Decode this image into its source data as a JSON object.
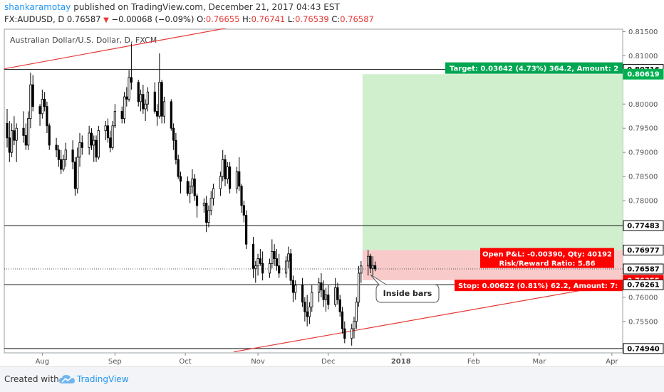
{
  "header": {
    "user": "shankaramotay",
    "published": " published on TradingView.com, December 21, 2017 04:43 EST",
    "symbol": "FX:AUDUSD, D",
    "last": "0.76587",
    "change": "−0.00068 (−0.09%)",
    "o_label": "O:",
    "o": "0.76655",
    "h_label": "H:",
    "h": "0.76741",
    "l_label": "L:",
    "l": "0.76539",
    "c_label": "C:",
    "c": "0.76587"
  },
  "footer": {
    "created": "Created with",
    "brand": "TradingView"
  },
  "chart_data": {
    "type": "candlestick",
    "title": "Australian Dollar/U.S. Dollar, D, FXCM",
    "ylim": [
      0.7485,
      0.8155
    ],
    "y_ticks": [
      "0.81500",
      "0.81000",
      "0.80000",
      "0.79500",
      "0.79000",
      "0.78500",
      "0.78000",
      "0.77500",
      "0.76000",
      "0.75500",
      "0.75000"
    ],
    "x_ticks": [
      "Aug",
      "Sep",
      "Oct",
      "Nov",
      "Dec",
      "2018",
      "Feb",
      "Mar",
      "Apr"
    ],
    "horizontal_levels": [
      0.80716,
      0.77483,
      0.76261,
      0.7494
    ],
    "price_labels": [
      {
        "text": "0.80716",
        "value": 0.80716,
        "color": "#ffffff",
        "text_color": "#000000"
      },
      {
        "text": "0.80619",
        "value": 0.80619,
        "color": "#00b050",
        "text_color": "#ffffff"
      },
      {
        "text": "0.77483",
        "value": 0.77483,
        "color": "#ffffff",
        "text_color": "#000000"
      },
      {
        "text": "0.76977",
        "value": 0.76977,
        "color": "#ffffff",
        "text_color": "#000000"
      },
      {
        "text": "0.76587",
        "value": 0.76587,
        "color": "#ffffff",
        "text_color": "#000000"
      },
      {
        "text": "0.76355",
        "value": 0.76355,
        "color": "#ff0000",
        "text_color": "#ffffff"
      },
      {
        "text": "0.76261",
        "value": 0.76261,
        "color": "#ffffff",
        "text_color": "#000000"
      },
      {
        "text": "0.74940",
        "value": 0.7494,
        "color": "#ffffff",
        "text_color": "#000000"
      }
    ],
    "position": {
      "entry": 0.76977,
      "target": 0.80619,
      "stop": 0.76355,
      "target_text": "Target: 0.03642 (4.73%) 364.2, Amount: 2",
      "pnl_text": "Open P&L: -0.00390, Qty: 40192",
      "rr_text": "Risk/Reward Ratio: 5.86",
      "stop_text": "Stop: 0.00622 (0.81%) 62.2, Amount: 7:"
    },
    "annotation": "Inside bars",
    "candles": [
      {
        "date": "2017-07-17",
        "o": 0.796,
        "h": 0.799,
        "l": 0.791,
        "c": 0.793
      },
      {
        "date": "2017-07-18",
        "o": 0.793,
        "h": 0.7965,
        "l": 0.788,
        "c": 0.79
      },
      {
        "date": "2017-07-19",
        "o": 0.79,
        "h": 0.796,
        "l": 0.789,
        "c": 0.7945
      },
      {
        "date": "2017-07-20",
        "o": 0.7945,
        "h": 0.7975,
        "l": 0.7915,
        "c": 0.7925
      },
      {
        "date": "2017-07-21",
        "o": 0.7925,
        "h": 0.796,
        "l": 0.788,
        "c": 0.795
      },
      {
        "date": "2017-07-24",
        "o": 0.795,
        "h": 0.7985,
        "l": 0.792,
        "c": 0.7935
      },
      {
        "date": "2017-07-25",
        "o": 0.7935,
        "h": 0.796,
        "l": 0.7905,
        "c": 0.7915
      },
      {
        "date": "2017-07-26",
        "o": 0.7915,
        "h": 0.7985,
        "l": 0.7905,
        "c": 0.797
      },
      {
        "date": "2017-07-27",
        "o": 0.797,
        "h": 0.8065,
        "l": 0.795,
        "c": 0.804
      },
      {
        "date": "2017-07-28",
        "o": 0.804,
        "h": 0.806,
        "l": 0.7985,
        "c": 0.7995
      },
      {
        "date": "2017-07-31",
        "o": 0.7995,
        "h": 0.8,
        "l": 0.7955,
        "c": 0.798
      },
      {
        "date": "2017-08-01",
        "o": 0.798,
        "h": 0.803,
        "l": 0.797,
        "c": 0.801
      },
      {
        "date": "2017-08-02",
        "o": 0.801,
        "h": 0.8025,
        "l": 0.7985,
        "c": 0.7995
      },
      {
        "date": "2017-08-03",
        "o": 0.7995,
        "h": 0.8005,
        "l": 0.794,
        "c": 0.7955
      },
      {
        "date": "2017-08-04",
        "o": 0.7955,
        "h": 0.796,
        "l": 0.7905,
        "c": 0.7915
      },
      {
        "date": "2017-08-07",
        "o": 0.7915,
        "h": 0.793,
        "l": 0.789,
        "c": 0.7905
      },
      {
        "date": "2017-08-08",
        "o": 0.7905,
        "h": 0.7915,
        "l": 0.787,
        "c": 0.7885
      },
      {
        "date": "2017-08-09",
        "o": 0.7885,
        "h": 0.7905,
        "l": 0.7855,
        "c": 0.7865
      },
      {
        "date": "2017-08-10",
        "o": 0.7865,
        "h": 0.7895,
        "l": 0.786,
        "c": 0.7885
      },
      {
        "date": "2017-08-11",
        "o": 0.7885,
        "h": 0.792,
        "l": 0.787,
        "c": 0.7905
      },
      {
        "date": "2017-08-14",
        "o": 0.7905,
        "h": 0.7925,
        "l": 0.7865,
        "c": 0.788
      },
      {
        "date": "2017-08-15",
        "o": 0.788,
        "h": 0.789,
        "l": 0.781,
        "c": 0.7825
      },
      {
        "date": "2017-08-16",
        "o": 0.7825,
        "h": 0.791,
        "l": 0.7815,
        "c": 0.789
      },
      {
        "date": "2017-08-17",
        "o": 0.789,
        "h": 0.794,
        "l": 0.787,
        "c": 0.792
      },
      {
        "date": "2017-08-18",
        "o": 0.792,
        "h": 0.7935,
        "l": 0.7895,
        "c": 0.791
      },
      {
        "date": "2017-08-21",
        "o": 0.791,
        "h": 0.7955,
        "l": 0.7895,
        "c": 0.794
      },
      {
        "date": "2017-08-22",
        "o": 0.794,
        "h": 0.795,
        "l": 0.7905,
        "c": 0.7915
      },
      {
        "date": "2017-08-23",
        "o": 0.7915,
        "h": 0.7935,
        "l": 0.788,
        "c": 0.7925
      },
      {
        "date": "2017-08-24",
        "o": 0.7925,
        "h": 0.7935,
        "l": 0.788,
        "c": 0.789
      },
      {
        "date": "2017-08-25",
        "o": 0.789,
        "h": 0.7955,
        "l": 0.7885,
        "c": 0.7945
      },
      {
        "date": "2017-08-28",
        "o": 0.7945,
        "h": 0.7965,
        "l": 0.7925,
        "c": 0.7955
      },
      {
        "date": "2017-08-29",
        "o": 0.7955,
        "h": 0.797,
        "l": 0.792,
        "c": 0.793
      },
      {
        "date": "2017-08-30",
        "o": 0.793,
        "h": 0.7945,
        "l": 0.79,
        "c": 0.791
      },
      {
        "date": "2017-08-31",
        "o": 0.791,
        "h": 0.7965,
        "l": 0.7905,
        "c": 0.7955
      },
      {
        "date": "2017-09-01",
        "o": 0.7955,
        "h": 0.8,
        "l": 0.795,
        "c": 0.7985
      },
      {
        "date": "2017-09-04",
        "o": 0.7985,
        "h": 0.7995,
        "l": 0.796,
        "c": 0.797
      },
      {
        "date": "2017-09-05",
        "o": 0.797,
        "h": 0.8025,
        "l": 0.796,
        "c": 0.8015
      },
      {
        "date": "2017-09-06",
        "o": 0.8015,
        "h": 0.8035,
        "l": 0.7995,
        "c": 0.801
      },
      {
        "date": "2017-09-07",
        "o": 0.801,
        "h": 0.807,
        "l": 0.8005,
        "c": 0.8055
      },
      {
        "date": "2017-09-08",
        "o": 0.8055,
        "h": 0.8125,
        "l": 0.803,
        "c": 0.8045
      },
      {
        "date": "2017-09-11",
        "o": 0.8045,
        "h": 0.805,
        "l": 0.7995,
        "c": 0.8005
      },
      {
        "date": "2017-09-12",
        "o": 0.8005,
        "h": 0.803,
        "l": 0.7985,
        "c": 0.802
      },
      {
        "date": "2017-09-13",
        "o": 0.802,
        "h": 0.804,
        "l": 0.798,
        "c": 0.799
      },
      {
        "date": "2017-09-14",
        "o": 0.799,
        "h": 0.801,
        "l": 0.7965,
        "c": 0.8
      },
      {
        "date": "2017-09-15",
        "o": 0.8,
        "h": 0.8035,
        "l": 0.7985,
        "c": 0.8025
      },
      {
        "date": "2017-09-18",
        "o": 0.8025,
        "h": 0.8045,
        "l": 0.798,
        "c": 0.7985
      },
      {
        "date": "2017-09-19",
        "o": 0.7985,
        "h": 0.8,
        "l": 0.7955,
        "c": 0.7975
      },
      {
        "date": "2017-09-20",
        "o": 0.7975,
        "h": 0.8105,
        "l": 0.797,
        "c": 0.8045
      },
      {
        "date": "2017-09-21",
        "o": 0.8045,
        "h": 0.805,
        "l": 0.796,
        "c": 0.7975
      },
      {
        "date": "2017-09-22",
        "o": 0.7975,
        "h": 0.8015,
        "l": 0.796,
        "c": 0.8005
      },
      {
        "date": "2017-09-25",
        "o": 0.8005,
        "h": 0.801,
        "l": 0.7945,
        "c": 0.795
      },
      {
        "date": "2017-09-26",
        "o": 0.795,
        "h": 0.796,
        "l": 0.7905,
        "c": 0.7925
      },
      {
        "date": "2017-09-27",
        "o": 0.7925,
        "h": 0.794,
        "l": 0.7875,
        "c": 0.7885
      },
      {
        "date": "2017-09-28",
        "o": 0.7885,
        "h": 0.7895,
        "l": 0.7845,
        "c": 0.785
      },
      {
        "date": "2017-09-29",
        "o": 0.785,
        "h": 0.786,
        "l": 0.7815,
        "c": 0.784
      },
      {
        "date": "2017-10-02",
        "o": 0.784,
        "h": 0.785,
        "l": 0.781,
        "c": 0.7815
      },
      {
        "date": "2017-10-03",
        "o": 0.7815,
        "h": 0.784,
        "l": 0.7795,
        "c": 0.783
      },
      {
        "date": "2017-10-04",
        "o": 0.783,
        "h": 0.7865,
        "l": 0.7815,
        "c": 0.7845
      },
      {
        "date": "2017-10-05",
        "o": 0.7845,
        "h": 0.7855,
        "l": 0.78,
        "c": 0.781
      },
      {
        "date": "2017-10-06",
        "o": 0.781,
        "h": 0.7815,
        "l": 0.7765,
        "c": 0.779
      },
      {
        "date": "2017-10-09",
        "o": 0.779,
        "h": 0.7805,
        "l": 0.7775,
        "c": 0.7795
      },
      {
        "date": "2017-10-10",
        "o": 0.7795,
        "h": 0.781,
        "l": 0.7735,
        "c": 0.7755
      },
      {
        "date": "2017-10-11",
        "o": 0.7755,
        "h": 0.779,
        "l": 0.7745,
        "c": 0.778
      },
      {
        "date": "2017-10-12",
        "o": 0.778,
        "h": 0.782,
        "l": 0.777,
        "c": 0.7805
      },
      {
        "date": "2017-10-13",
        "o": 0.7805,
        "h": 0.7835,
        "l": 0.779,
        "c": 0.7825
      },
      {
        "date": "2017-10-16",
        "o": 0.7825,
        "h": 0.786,
        "l": 0.781,
        "c": 0.785
      },
      {
        "date": "2017-10-17",
        "o": 0.785,
        "h": 0.7905,
        "l": 0.784,
        "c": 0.7885
      },
      {
        "date": "2017-10-18",
        "o": 0.7885,
        "h": 0.7895,
        "l": 0.783,
        "c": 0.7845
      },
      {
        "date": "2017-10-19",
        "o": 0.7845,
        "h": 0.788,
        "l": 0.7835,
        "c": 0.787
      },
      {
        "date": "2017-10-20",
        "o": 0.787,
        "h": 0.788,
        "l": 0.7815,
        "c": 0.7825
      },
      {
        "date": "2017-10-23",
        "o": 0.7825,
        "h": 0.787,
        "l": 0.7815,
        "c": 0.786
      },
      {
        "date": "2017-10-24",
        "o": 0.786,
        "h": 0.789,
        "l": 0.782,
        "c": 0.783
      },
      {
        "date": "2017-10-25",
        "o": 0.783,
        "h": 0.7835,
        "l": 0.7775,
        "c": 0.779
      },
      {
        "date": "2017-10-26",
        "o": 0.779,
        "h": 0.78,
        "l": 0.7755,
        "c": 0.777
      },
      {
        "date": "2017-10-27",
        "o": 0.777,
        "h": 0.778,
        "l": 0.77,
        "c": 0.771
      },
      {
        "date": "2017-10-30",
        "o": 0.771,
        "h": 0.7725,
        "l": 0.764,
        "c": 0.766
      },
      {
        "date": "2017-10-31",
        "o": 0.766,
        "h": 0.7675,
        "l": 0.763,
        "c": 0.7665
      },
      {
        "date": "2017-11-01",
        "o": 0.7665,
        "h": 0.769,
        "l": 0.7645,
        "c": 0.768
      },
      {
        "date": "2017-11-02",
        "o": 0.768,
        "h": 0.77,
        "l": 0.7665,
        "c": 0.767
      },
      {
        "date": "2017-11-03",
        "o": 0.767,
        "h": 0.7695,
        "l": 0.7635,
        "c": 0.765
      },
      {
        "date": "2017-11-06",
        "o": 0.765,
        "h": 0.768,
        "l": 0.764,
        "c": 0.767
      },
      {
        "date": "2017-11-07",
        "o": 0.767,
        "h": 0.772,
        "l": 0.766,
        "c": 0.7695
      },
      {
        "date": "2017-11-08",
        "o": 0.7695,
        "h": 0.771,
        "l": 0.7665,
        "c": 0.768
      },
      {
        "date": "2017-11-09",
        "o": 0.768,
        "h": 0.77,
        "l": 0.7655,
        "c": 0.7665
      },
      {
        "date": "2017-11-10",
        "o": 0.7665,
        "h": 0.769,
        "l": 0.764,
        "c": 0.765
      },
      {
        "date": "2017-11-13",
        "o": 0.765,
        "h": 0.7685,
        "l": 0.764,
        "c": 0.7675
      },
      {
        "date": "2017-11-14",
        "o": 0.7675,
        "h": 0.7705,
        "l": 0.766,
        "c": 0.769
      },
      {
        "date": "2017-11-15",
        "o": 0.769,
        "h": 0.77,
        "l": 0.7625,
        "c": 0.7635
      },
      {
        "date": "2017-11-16",
        "o": 0.7635,
        "h": 0.7645,
        "l": 0.759,
        "c": 0.761
      },
      {
        "date": "2017-11-17",
        "o": 0.761,
        "h": 0.7635,
        "l": 0.7595,
        "c": 0.7625
      },
      {
        "date": "2017-11-20",
        "o": 0.7625,
        "h": 0.764,
        "l": 0.758,
        "c": 0.759
      },
      {
        "date": "2017-11-21",
        "o": 0.759,
        "h": 0.76,
        "l": 0.755,
        "c": 0.757
      },
      {
        "date": "2017-11-22",
        "o": 0.757,
        "h": 0.7605,
        "l": 0.754,
        "c": 0.756
      },
      {
        "date": "2017-11-23",
        "o": 0.756,
        "h": 0.759,
        "l": 0.7545,
        "c": 0.758
      },
      {
        "date": "2017-11-24",
        "o": 0.758,
        "h": 0.7625,
        "l": 0.757,
        "c": 0.761
      },
      {
        "date": "2017-11-27",
        "o": 0.761,
        "h": 0.764,
        "l": 0.759,
        "c": 0.763
      },
      {
        "date": "2017-11-28",
        "o": 0.763,
        "h": 0.765,
        "l": 0.76,
        "c": 0.7615
      },
      {
        "date": "2017-11-29",
        "o": 0.7615,
        "h": 0.7635,
        "l": 0.758,
        "c": 0.7595
      },
      {
        "date": "2017-11-30",
        "o": 0.7595,
        "h": 0.762,
        "l": 0.757,
        "c": 0.7605
      },
      {
        "date": "2017-12-01",
        "o": 0.7605,
        "h": 0.7625,
        "l": 0.7575,
        "c": 0.7585
      },
      {
        "date": "2017-12-04",
        "o": 0.7585,
        "h": 0.764,
        "l": 0.758,
        "c": 0.762
      },
      {
        "date": "2017-12-05",
        "o": 0.762,
        "h": 0.763,
        "l": 0.7585,
        "c": 0.7595
      },
      {
        "date": "2017-12-06",
        "o": 0.7595,
        "h": 0.7605,
        "l": 0.756,
        "c": 0.757
      },
      {
        "date": "2017-12-07",
        "o": 0.757,
        "h": 0.758,
        "l": 0.7525,
        "c": 0.7535
      },
      {
        "date": "2017-12-08",
        "o": 0.7535,
        "h": 0.755,
        "l": 0.7505,
        "c": 0.7515
      },
      {
        "date": "2017-12-11",
        "o": 0.7515,
        "h": 0.7545,
        "l": 0.75,
        "c": 0.7535
      },
      {
        "date": "2017-12-12",
        "o": 0.7535,
        "h": 0.756,
        "l": 0.7515,
        "c": 0.755
      },
      {
        "date": "2017-12-13",
        "o": 0.755,
        "h": 0.76,
        "l": 0.7535,
        "c": 0.759
      },
      {
        "date": "2017-12-14",
        "o": 0.759,
        "h": 0.7665,
        "l": 0.758,
        "c": 0.765
      },
      {
        "date": "2017-12-15",
        "o": 0.765,
        "h": 0.7675,
        "l": 0.763,
        "c": 0.7665
      },
      {
        "date": "2017-12-18",
        "o": 0.7665,
        "h": 0.7698,
        "l": 0.7645,
        "c": 0.7685
      },
      {
        "date": "2017-12-19",
        "o": 0.7685,
        "h": 0.769,
        "l": 0.765,
        "c": 0.766
      },
      {
        "date": "2017-12-20",
        "o": 0.766,
        "h": 0.7685,
        "l": 0.7645,
        "c": 0.7666
      },
      {
        "date": "2017-12-21",
        "o": 0.76655,
        "h": 0.76741,
        "l": 0.76539,
        "c": 0.76587
      }
    ]
  }
}
